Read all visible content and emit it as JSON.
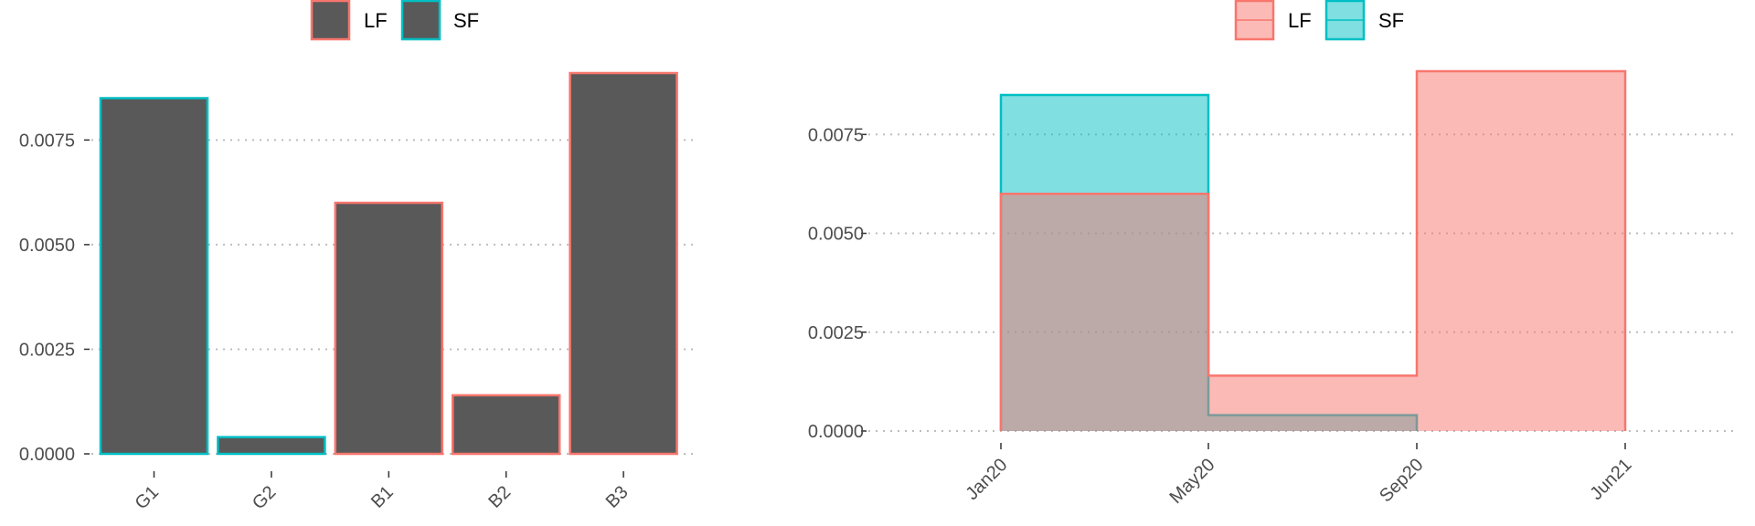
{
  "colors": {
    "lf": "#f8766d",
    "sf": "#00bfc4",
    "bar_fill": "#595959",
    "lf_fill": "#f8766d",
    "sf_fill": "#00bfc4",
    "grid": "#bdbdbd",
    "text": "#4d4d4d"
  },
  "chart_data": [
    {
      "type": "bar",
      "legend": {
        "position": "top",
        "entries": [
          {
            "label": "LF",
            "style": "lf"
          },
          {
            "label": "SF",
            "style": "sf"
          }
        ]
      },
      "categories": [
        "G1",
        "G2",
        "B1",
        "B2",
        "B3"
      ],
      "values": [
        0.0085,
        0.0004,
        0.006,
        0.0014,
        0.0091
      ],
      "outline_group": [
        "SF",
        "SF",
        "LF",
        "LF",
        "LF"
      ],
      "ylim": [
        0,
        0.0091
      ],
      "yticks": [
        0,
        0.0025,
        0.005,
        0.0075
      ],
      "ytick_labels": [
        "0.0000",
        "0.0025",
        "0.0050",
        "0.0075"
      ],
      "grid": "horizontal dotted",
      "xlabel": "",
      "ylabel": "",
      "title": ""
    },
    {
      "type": "area",
      "legend": {
        "position": "top",
        "entries": [
          {
            "label": "LF",
            "style": "lf"
          },
          {
            "label": "SF",
            "style": "sf"
          }
        ]
      },
      "x_ticks": [
        "Jan20",
        "May20",
        "Sep20",
        "Jun21"
      ],
      "series": [
        {
          "name": "LF",
          "steps": [
            {
              "from": "Jan20",
              "to": "May20",
              "value": 0.006
            },
            {
              "from": "May20",
              "to": "Sep20",
              "value": 0.0014
            },
            {
              "from": "Sep20",
              "to": "Jun21",
              "value": 0.0091
            }
          ]
        },
        {
          "name": "SF",
          "steps": [
            {
              "from": "Jan20",
              "to": "May20",
              "value": 0.0085
            },
            {
              "from": "May20",
              "to": "Sep20",
              "value": 0.0004
            }
          ]
        }
      ],
      "ylim": [
        0,
        0.0091
      ],
      "yticks": [
        0,
        0.0025,
        0.005,
        0.0075
      ],
      "ytick_labels": [
        "0.0000",
        "0.0025",
        "0.0050",
        "0.0075"
      ],
      "grid": "horizontal dotted",
      "xlabel": "",
      "ylabel": "",
      "title": ""
    }
  ]
}
